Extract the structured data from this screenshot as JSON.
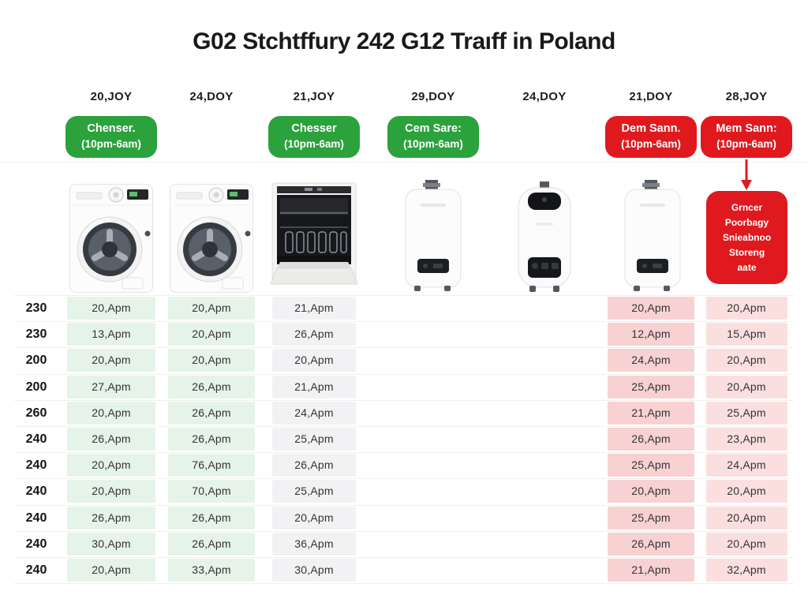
{
  "title": "G02 Stchtffury 242 G12 Traıff in Poland",
  "colors": {
    "green": "#2ba23c",
    "red": "#e0191f",
    "cell_green": "#e6f3e9",
    "cell_gray": "#f2f2f4",
    "cell_pink": "#f8d1d2",
    "cell_pink_light": "#fbdfdf"
  },
  "chart_data": {
    "type": "table",
    "title": "G02 Stchtffury 242 G12 Traıff in Poland",
    "row_labels": [
      "230",
      "230",
      "200",
      "200",
      "260",
      "240",
      "240",
      "240",
      "240",
      "240",
      "240"
    ],
    "columns": [
      {
        "date": "20,JOY",
        "badge": {
          "text": "Chenser.",
          "hours": "(10pm-6am)",
          "type": "green"
        },
        "appliance": "washing-machine",
        "cell_style": "green",
        "values": [
          "20,Apm",
          "13,Apm",
          "20,Apm",
          "27,Apm",
          "20,Apm",
          "26,Apm",
          "20,Apm",
          "20,Apm",
          "26,Apm",
          "30,Apm",
          "20,Apm"
        ]
      },
      {
        "date": "24,DOY",
        "badge": null,
        "appliance": "washing-machine",
        "cell_style": "green",
        "values": [
          "20,Apm",
          "20,Apm",
          "20,Apm",
          "26,Apm",
          "26,Apm",
          "26,Apm",
          "76,Apm",
          "70,Apm",
          "26,Apm",
          "26,Apm",
          "33,Apm"
        ]
      },
      {
        "date": "21,JOY",
        "badge": {
          "text": "Chesser",
          "hours": "(10pm-6am)",
          "type": "green"
        },
        "appliance": "dishwasher",
        "cell_style": "gray",
        "values": [
          "21,Apm",
          "26,Apm",
          "20,Apm",
          "21,Apm",
          "24,Apm",
          "25,Apm",
          "26,Apm",
          "25,Apm",
          "20,Apm",
          "36,Apm",
          "30,Apm"
        ]
      },
      {
        "date": "29,DOY",
        "badge": {
          "text": "Cem Sare:",
          "hours": "(10pm-6am)",
          "type": "green"
        },
        "appliance": "water-heater",
        "cell_style": null,
        "values": []
      },
      {
        "date": "24,DOY",
        "badge": null,
        "appliance": "water-heater-dark",
        "cell_style": null,
        "values": []
      },
      {
        "date": "21,DOY",
        "badge": {
          "text": "Dem Sann.",
          "hours": "(10pm-6am)",
          "type": "red"
        },
        "appliance": "water-heater",
        "cell_style": "pink",
        "values": [
          "20,Apm",
          "12,Apm",
          "24,Apm",
          "25,Apm",
          "21,Apm",
          "26,Apm",
          "25,Apm",
          "20,Apm",
          "25,Apm",
          "26,Apm",
          "21,Apm"
        ]
      },
      {
        "date": "28,JOY",
        "badge": {
          "text": "Mem Sann:",
          "hours": "(10pm-6am)",
          "type": "red"
        },
        "appliance": "annotation",
        "cell_style": "pink_light",
        "values": [
          "20,Apm",
          "15,Apm",
          "20,Apm",
          "20,Apm",
          "25,Apm",
          "23,Apm",
          "24,Apm",
          "20,Apm",
          "20,Apm",
          "20,Apm",
          "32,Apm"
        ]
      }
    ],
    "annotation_box": {
      "lines": [
        "Grncer",
        "Poorbagy",
        "Snieabnoo",
        "Storeng",
        "aate"
      ]
    }
  }
}
